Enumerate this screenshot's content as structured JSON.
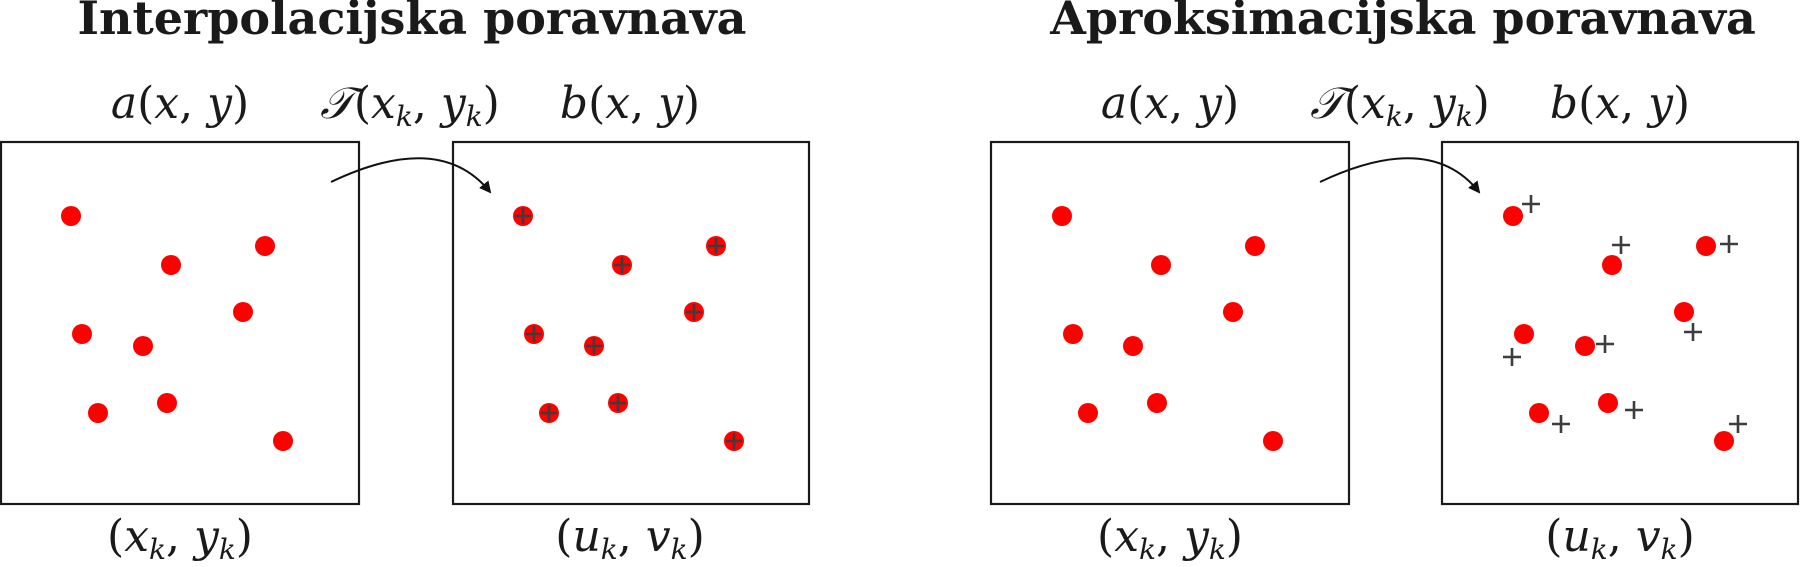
{
  "diagrams": [
    {
      "title": "Interpolacijska poravnava",
      "left_label": {
        "f": "a",
        "x": "x",
        "y": "y"
      },
      "transform_label": {
        "f": "𝒯",
        "x": "x",
        "xs": "k",
        "y": "y",
        "ys": "k"
      },
      "right_label": {
        "f": "b",
        "x": "x",
        "y": "y"
      },
      "left_coords": {
        "a": "x",
        "as": "k",
        "b": "y",
        "bs": "k"
      },
      "right_coords": {
        "a": "u",
        "as": "k",
        "b": "v",
        "bs": "k"
      }
    },
    {
      "title": "Aproksimacijska poravnava",
      "left_label": {
        "f": "a",
        "x": "x",
        "y": "y"
      },
      "transform_label": {
        "f": "𝒯",
        "x": "x",
        "xs": "k",
        "y": "y",
        "ys": "k"
      },
      "right_label": {
        "f": "b",
        "x": "x",
        "y": "y"
      },
      "left_coords": {
        "a": "x",
        "as": "k",
        "b": "y",
        "bs": "k"
      },
      "right_coords": {
        "a": "u",
        "as": "k",
        "b": "v",
        "bs": "k"
      }
    }
  ],
  "colors": {
    "point": "#ff0000",
    "plus_marker": "#3d3d3d",
    "frame": "#1a1a1a"
  },
  "markers": {
    "source_point": "red filled circle",
    "target_point": "red filled circle",
    "transformed_point": "plus"
  }
}
